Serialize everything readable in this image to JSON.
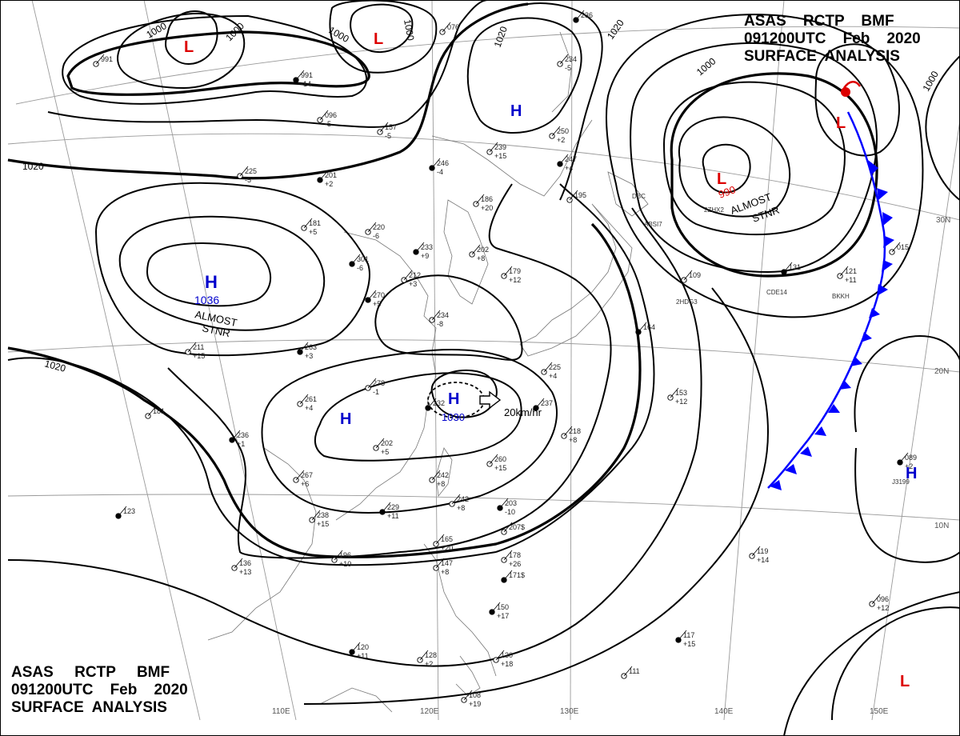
{
  "header": {
    "line1": "ASAS    RCTP    BMF",
    "line2": "091200UTC    Feb    2020",
    "line3": "SURFACE  ANALYSIS"
  },
  "footer": {
    "line1": "ASAS     RCTP     BMF",
    "line2": "091200UTC    Feb    2020",
    "line3": "SURFACE  ANALYSIS"
  },
  "colors": {
    "high": "#0000cc",
    "low": "#dd0000",
    "front": "#0000ff",
    "isobar": "#000000",
    "grid": "#9a9a9a",
    "coast": "#777777"
  },
  "systems": {
    "high_1036": {
      "letter": "H",
      "pressure": "1036",
      "note1": "ALMOST",
      "note2": "STNR"
    },
    "high_1030": {
      "letter": "H",
      "pressure": "1030",
      "motion": "20km/hr"
    },
    "high_china": {
      "letter": "H"
    },
    "high_north": {
      "letter": "H"
    },
    "high_east": {
      "letter": "H"
    },
    "low_nw1": {
      "letter": "L"
    },
    "low_nw2": {
      "letter": "L"
    },
    "low_east": {
      "letter": "L",
      "pressure": "990",
      "note1": "ALMOST",
      "note2": "STNR"
    },
    "low_ne": {
      "letter": "L"
    },
    "low_se": {
      "letter": "L"
    }
  },
  "isobar_labels": {
    "l1000a": "1000",
    "l1000b": "1000",
    "l1000c": "1000",
    "l1000d": "1000",
    "l1000e": "1000",
    "l1000f": "1000",
    "l1020a": "1020",
    "l1020b": "1020",
    "l1020c": "1020",
    "l1020d": "1020"
  },
  "longitudes": [
    "110E",
    "120E",
    "130E",
    "140E",
    "150E"
  ],
  "latitudes": [
    "30N",
    "20N",
    "10N"
  ],
  "stations": [
    {
      "t": "991",
      "v": "-14"
    },
    {
      "t": "096",
      "v": "-5"
    },
    {
      "t": "157",
      "v": "-5"
    },
    {
      "t": "246",
      "v": "-4"
    },
    {
      "t": "239",
      "v": "+15"
    },
    {
      "t": "250",
      "v": "+2"
    },
    {
      "t": "247",
      "v": "+4"
    },
    {
      "t": "234",
      "v": "-5"
    },
    {
      "t": "225",
      "v": "-5"
    },
    {
      "t": "201",
      "v": "+2"
    },
    {
      "t": "181",
      "v": "+5"
    },
    {
      "t": "220",
      "v": "-6"
    },
    {
      "t": "233",
      "v": "+9"
    },
    {
      "t": "202",
      "v": "+8"
    },
    {
      "t": "186",
      "v": "+20"
    },
    {
      "t": "301",
      "v": "-6"
    },
    {
      "t": "212",
      "v": "+3"
    },
    {
      "t": "179",
      "v": "+12"
    },
    {
      "t": "270",
      "v": "+5"
    },
    {
      "t": "234",
      "v": "-8"
    },
    {
      "t": "211",
      "v": "+15"
    },
    {
      "t": "263",
      "v": "+3"
    },
    {
      "t": "261",
      "v": "+4"
    },
    {
      "t": "278",
      "v": "-1"
    },
    {
      "t": "232",
      "v": ""
    },
    {
      "t": "202",
      "v": "+5"
    },
    {
      "t": "181",
      "v": ""
    },
    {
      "t": "236",
      "v": "+1"
    },
    {
      "t": "267",
      "v": "+6"
    },
    {
      "t": "238",
      "v": "+15"
    },
    {
      "t": "229",
      "v": "+11"
    },
    {
      "t": "242",
      "v": "+8"
    },
    {
      "t": "242",
      "v": "+8"
    },
    {
      "t": "203",
      "v": "-10"
    },
    {
      "t": "207$",
      "v": ""
    },
    {
      "t": "178",
      "v": "+26"
    },
    {
      "t": "171$",
      "v": ""
    },
    {
      "t": "196",
      "v": "+10"
    },
    {
      "t": "136",
      "v": "+13"
    },
    {
      "t": "123",
      "v": ""
    },
    {
      "t": "165",
      "v": "+20"
    },
    {
      "t": "147",
      "v": "+8"
    },
    {
      "t": "150",
      "v": "+17"
    },
    {
      "t": "130",
      "v": "+18"
    },
    {
      "t": "128",
      "v": "+2"
    },
    {
      "t": "120",
      "v": "+11"
    },
    {
      "t": "108",
      "v": "+19"
    },
    {
      "t": "111",
      "v": ""
    },
    {
      "t": "117",
      "v": "+15"
    },
    {
      "t": "119",
      "v": "+14"
    },
    {
      "t": "096",
      "v": "+12"
    },
    {
      "t": "089",
      "v": "+2"
    },
    {
      "t": "109",
      "v": ""
    },
    {
      "t": "153",
      "v": "+12"
    },
    {
      "t": "164",
      "v": ""
    },
    {
      "t": "218",
      "v": "+8"
    },
    {
      "t": "260",
      "v": "+15"
    },
    {
      "t": "237",
      "v": ""
    },
    {
      "t": "225",
      "v": "+4"
    },
    {
      "t": "015",
      "v": ""
    },
    {
      "t": "131",
      "v": ""
    },
    {
      "t": "121",
      "v": "+11"
    },
    {
      "t": "076",
      "v": ""
    },
    {
      "t": "236",
      "v": ""
    },
    {
      "t": "991",
      "v": ""
    },
    {
      "t": "195",
      "v": ""
    }
  ],
  "station_ids": [
    "ABSI7",
    "DBC",
    "2HDG3",
    "CDE14",
    "BKKH",
    "J3199",
    "2ZHX2"
  ]
}
